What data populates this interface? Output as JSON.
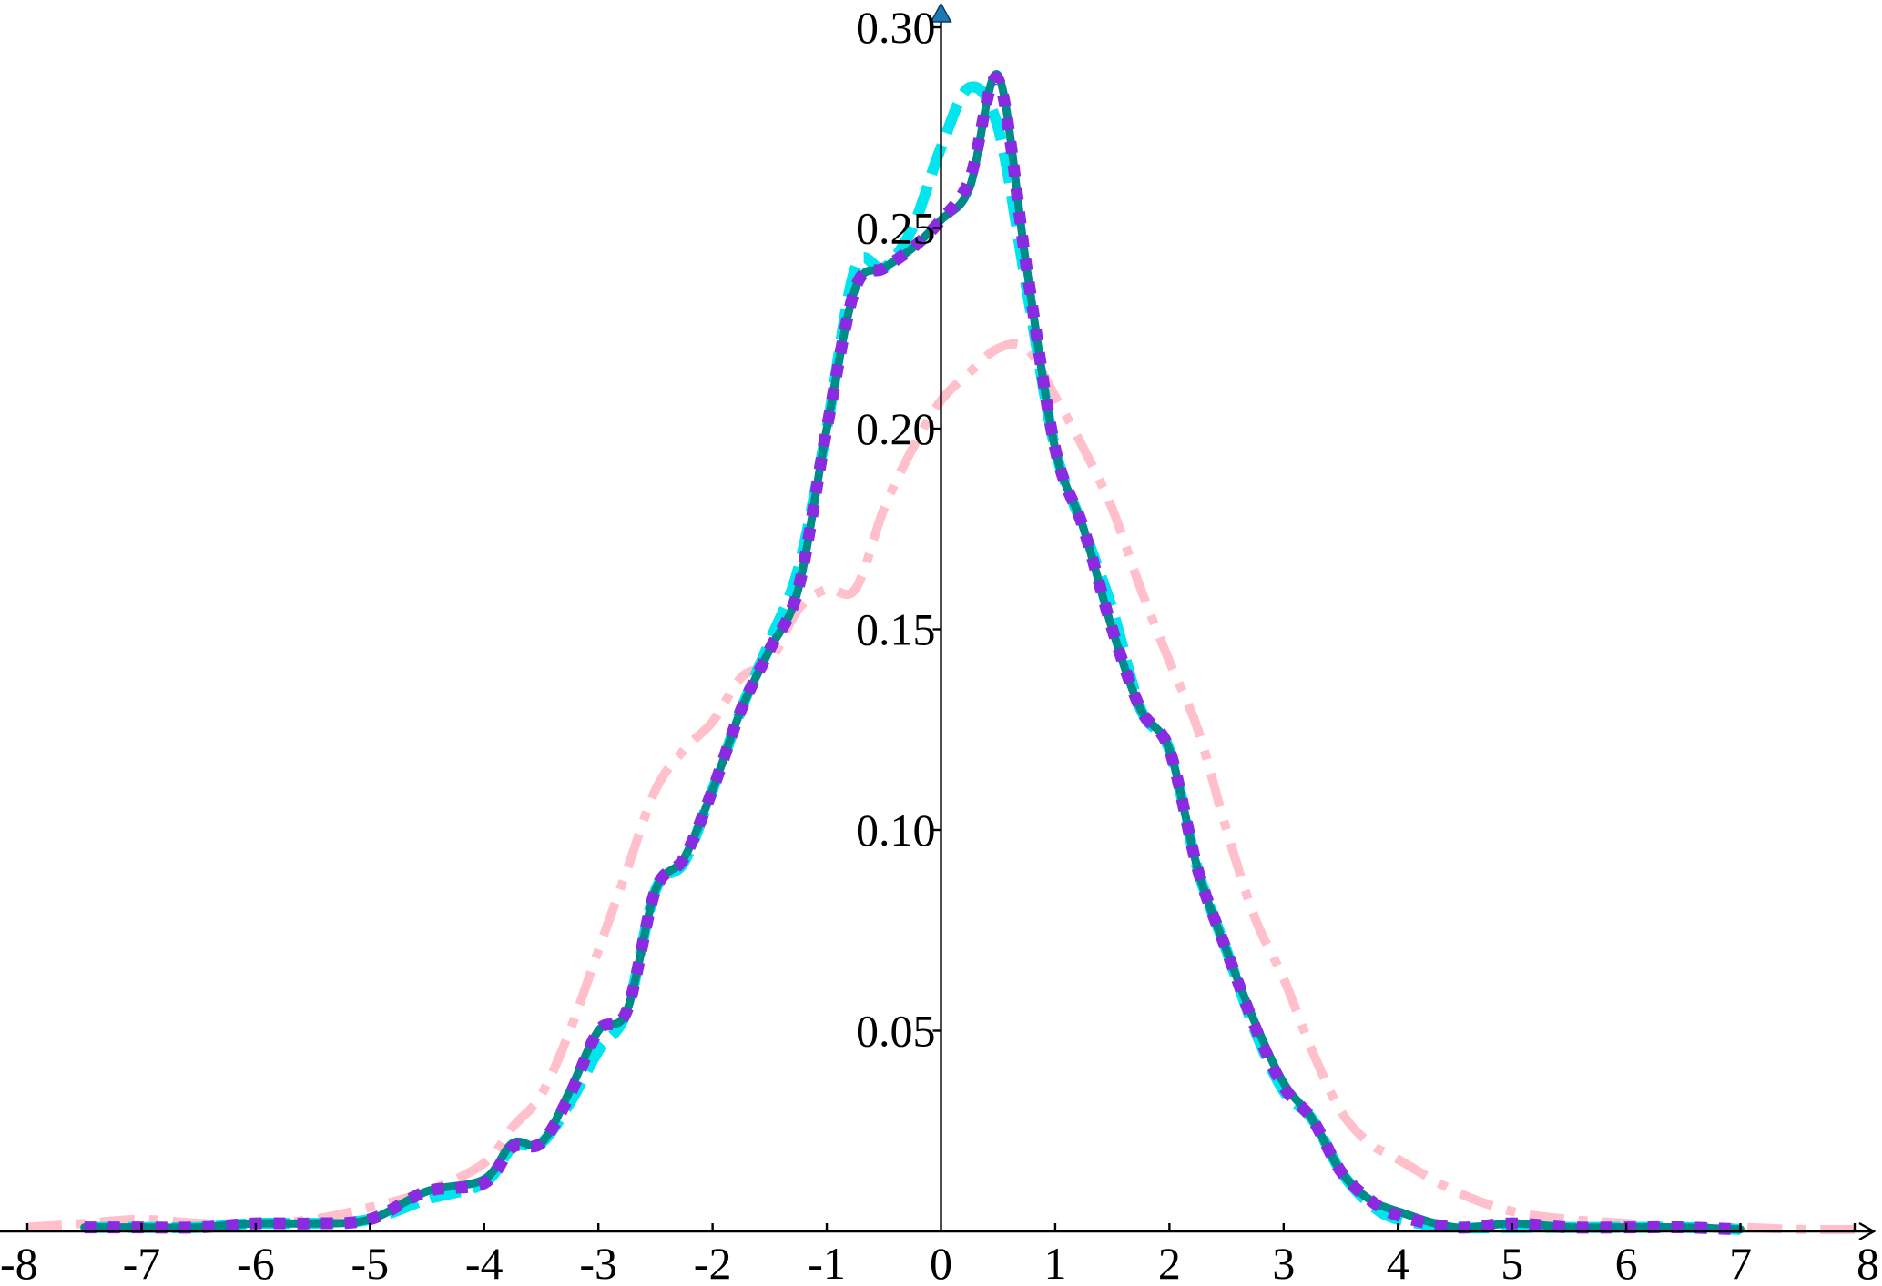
{
  "chart_data": {
    "type": "line",
    "title": "",
    "xlabel": "",
    "ylabel": "",
    "xlim": [
      -8,
      8
    ],
    "ylim": [
      0,
      0.3
    ],
    "grid": false,
    "legend": "none",
    "x_ticks": [
      {
        "value": -8,
        "label": "-8"
      },
      {
        "value": -7,
        "label": "-7"
      },
      {
        "value": -6,
        "label": "-6"
      },
      {
        "value": -5,
        "label": "-5"
      },
      {
        "value": -4,
        "label": "-4"
      },
      {
        "value": -3,
        "label": "-3"
      },
      {
        "value": -2,
        "label": "-2"
      },
      {
        "value": -1,
        "label": "-1"
      },
      {
        "value": 0,
        "label": "0"
      },
      {
        "value": 1,
        "label": "1"
      },
      {
        "value": 2,
        "label": "2"
      },
      {
        "value": 3,
        "label": "3"
      },
      {
        "value": 4,
        "label": "4"
      },
      {
        "value": 5,
        "label": "5"
      },
      {
        "value": 6,
        "label": "6"
      },
      {
        "value": 7,
        "label": "7"
      },
      {
        "value": 8,
        "label": "8"
      }
    ],
    "y_ticks": [
      {
        "value": 0.05,
        "label": "0.05"
      },
      {
        "value": 0.1,
        "label": "0.10"
      },
      {
        "value": 0.15,
        "label": "0.15"
      },
      {
        "value": 0.2,
        "label": "0.20"
      },
      {
        "value": 0.25,
        "label": "0.25"
      },
      {
        "value": 0.3,
        "label": "0.30"
      }
    ],
    "series": [
      {
        "color": "#ffc0cb",
        "line_style": "dashdot",
        "x": [
          -8.0,
          -7.5,
          -7.0,
          -6.5,
          -6.0,
          -5.5,
          -5.0,
          -4.5,
          -4.0,
          -3.75,
          -3.5,
          -3.25,
          -3.0,
          -2.75,
          -2.5,
          -2.25,
          -2.0,
          -1.75,
          -1.5,
          -1.25,
          -1.0,
          -0.75,
          -0.5,
          -0.25,
          0.0,
          0.25,
          0.5,
          0.75,
          1.0,
          1.25,
          1.5,
          1.75,
          2.0,
          2.25,
          2.5,
          2.75,
          3.0,
          3.25,
          3.5,
          3.75,
          4.0,
          4.5,
          5.0,
          5.5,
          6.0,
          6.5,
          7.0,
          7.5,
          8.0
        ],
        "y": [
          0.001,
          0.002,
          0.003,
          0.002,
          0.002,
          0.003,
          0.006,
          0.01,
          0.017,
          0.026,
          0.034,
          0.05,
          0.07,
          0.09,
          0.11,
          0.12,
          0.127,
          0.138,
          0.142,
          0.155,
          0.16,
          0.16,
          0.18,
          0.195,
          0.207,
          0.214,
          0.22,
          0.22,
          0.208,
          0.195,
          0.18,
          0.16,
          0.142,
          0.125,
          0.1,
          0.078,
          0.063,
          0.045,
          0.03,
          0.022,
          0.018,
          0.01,
          0.005,
          0.003,
          0.002,
          0.001,
          0.001,
          0.0005,
          0.0005
        ]
      },
      {
        "color": "#00e5ee",
        "line_style": "dashed",
        "x": [
          -7.5,
          -7.0,
          -6.5,
          -6.0,
          -5.5,
          -5.0,
          -4.5,
          -4.0,
          -3.75,
          -3.5,
          -3.25,
          -3.0,
          -2.75,
          -2.5,
          -2.25,
          -2.0,
          -1.75,
          -1.5,
          -1.25,
          -1.0,
          -0.75,
          -0.5,
          -0.25,
          0.0,
          0.25,
          0.5,
          0.75,
          1.0,
          1.25,
          1.5,
          1.75,
          2.0,
          2.25,
          2.5,
          2.75,
          3.0,
          3.25,
          3.5,
          3.75,
          4.0,
          4.5,
          5.0,
          5.5,
          6.0,
          6.5,
          7.0
        ],
        "y": [
          0.001,
          0.001,
          0.001,
          0.002,
          0.002,
          0.003,
          0.008,
          0.012,
          0.021,
          0.022,
          0.032,
          0.045,
          0.055,
          0.085,
          0.092,
          0.11,
          0.13,
          0.147,
          0.165,
          0.2,
          0.24,
          0.24,
          0.25,
          0.27,
          0.285,
          0.275,
          0.235,
          0.195,
          0.175,
          0.155,
          0.13,
          0.12,
          0.09,
          0.07,
          0.05,
          0.035,
          0.028,
          0.015,
          0.007,
          0.003,
          0.001,
          0.001,
          0.001,
          0.001,
          0.001,
          0.0005
        ]
      },
      {
        "color": "#008b8b",
        "line_style": "solid",
        "x": [
          -7.5,
          -7.0,
          -6.5,
          -6.0,
          -5.5,
          -5.0,
          -4.5,
          -4.0,
          -3.75,
          -3.5,
          -3.25,
          -3.0,
          -2.75,
          -2.5,
          -2.25,
          -2.0,
          -1.75,
          -1.5,
          -1.25,
          -1.0,
          -0.75,
          -0.5,
          -0.25,
          0.0,
          0.25,
          0.5,
          0.75,
          1.0,
          1.25,
          1.5,
          1.75,
          2.0,
          2.25,
          2.5,
          2.75,
          3.0,
          3.25,
          3.5,
          3.75,
          4.0,
          4.5,
          5.0,
          5.5,
          6.0,
          6.5,
          7.0
        ],
        "y": [
          0.001,
          0.001,
          0.001,
          0.002,
          0.002,
          0.003,
          0.01,
          0.013,
          0.022,
          0.022,
          0.035,
          0.05,
          0.055,
          0.085,
          0.093,
          0.11,
          0.13,
          0.145,
          0.16,
          0.2,
          0.235,
          0.24,
          0.245,
          0.252,
          0.26,
          0.288,
          0.24,
          0.195,
          0.175,
          0.15,
          0.13,
          0.12,
          0.09,
          0.07,
          0.052,
          0.037,
          0.028,
          0.015,
          0.008,
          0.005,
          0.001,
          0.002,
          0.001,
          0.001,
          0.001,
          0.0005
        ]
      },
      {
        "color": "#8a2be2",
        "line_style": "dotted",
        "x": [
          -7.5,
          -7.0,
          -6.5,
          -6.0,
          -5.5,
          -5.0,
          -4.5,
          -4.0,
          -3.75,
          -3.5,
          -3.25,
          -3.0,
          -2.75,
          -2.5,
          -2.25,
          -2.0,
          -1.75,
          -1.5,
          -1.25,
          -1.0,
          -0.75,
          -0.5,
          -0.25,
          0.0,
          0.25,
          0.5,
          0.75,
          1.0,
          1.25,
          1.5,
          1.75,
          2.0,
          2.25,
          2.5,
          2.75,
          3.0,
          3.25,
          3.5,
          3.75,
          4.0,
          4.5,
          5.0,
          5.5,
          6.0,
          6.5,
          7.0
        ],
        "y": [
          0.001,
          0.001,
          0.001,
          0.002,
          0.002,
          0.003,
          0.01,
          0.012,
          0.021,
          0.022,
          0.034,
          0.05,
          0.055,
          0.085,
          0.093,
          0.11,
          0.13,
          0.145,
          0.16,
          0.2,
          0.235,
          0.24,
          0.245,
          0.252,
          0.262,
          0.287,
          0.24,
          0.195,
          0.175,
          0.15,
          0.13,
          0.12,
          0.09,
          0.07,
          0.051,
          0.036,
          0.028,
          0.015,
          0.008,
          0.004,
          0.001,
          0.002,
          0.001,
          0.001,
          0.001,
          0.0005
        ]
      }
    ]
  }
}
